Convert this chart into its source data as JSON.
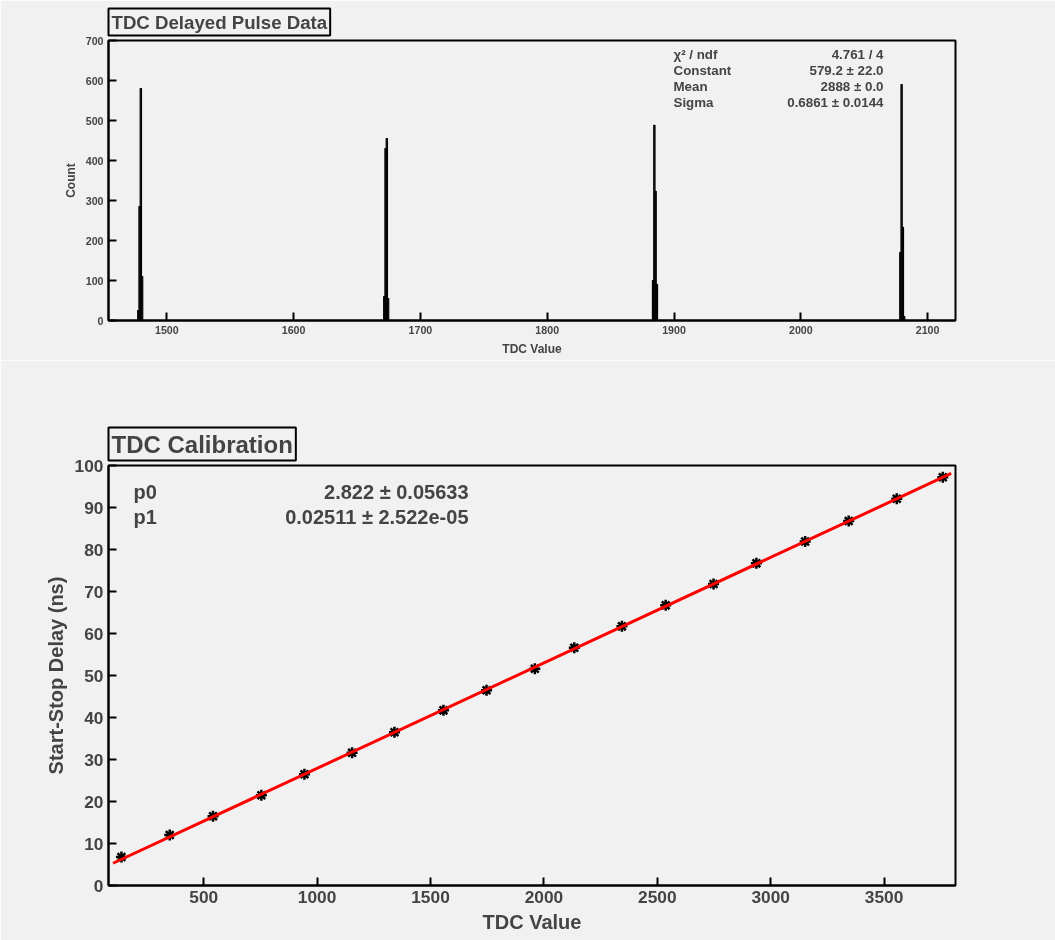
{
  "chart_data": [
    {
      "type": "histogram",
      "title": "TDC Delayed Pulse Data",
      "xlabel": "TDC Value",
      "ylabel": "Count",
      "bins": [
        1477,
        1478,
        1479,
        1480,
        1481,
        1671,
        1672,
        1673,
        1674,
        1675,
        1883,
        1884,
        1885,
        1886,
        1887,
        2078,
        2079,
        2080,
        2081,
        2082
      ],
      "values": [
        25,
        285,
        580,
        110,
        0,
        60,
        430,
        455,
        55,
        0,
        100,
        488,
        323,
        90,
        0,
        170,
        590,
        233,
        10
      ],
      "color": "#000000",
      "xlim": [
        1454,
        2122
      ],
      "xticks": [
        1500,
        1600,
        1700,
        1800,
        1900,
        2000,
        2100
      ],
      "ylim": [
        0,
        700
      ],
      "yticks": [
        0,
        100,
        200,
        300,
        400,
        500,
        600,
        700
      ],
      "annotations": [
        "χ² / ndf",
        "4.761 / 4",
        "Constant",
        "579.2 ± 22.0",
        "Mean",
        "2888 ± 0.0",
        "Sigma",
        "0.6861 ± 0.0144"
      ]
    },
    {
      "type": "scatter",
      "title": "TDC Calibration",
      "xlabel": "TDC Value",
      "ylabel": "Start-Stop Delay (ns)",
      "series": [
        {
          "color": "#000000",
          "marker": "cross",
          "x": [
            137,
            350,
            541,
            754,
            944,
            1154,
            1341,
            1557,
            1747,
            1960,
            2134,
            2344,
            2537,
            2748,
            2937,
            3152,
            3344,
            3556,
            3759
          ],
          "values": [
            6.8,
            12,
            16.5,
            21.5,
            26.5,
            31.6,
            36.5,
            41.7,
            46.5,
            51.6,
            56.6,
            61.7,
            66.7,
            71.8,
            76.7,
            81.9,
            86.8,
            92.1,
            97.2
          ]
        },
        {
          "type": "line",
          "color": "#ff0000",
          "x": [
            100,
            3796
          ],
          "values": [
            5.3,
            98.1
          ]
        }
      ],
      "xlim": [
        80,
        3815
      ],
      "xticks": [
        500,
        1000,
        1500,
        2000,
        2500,
        3000,
        3500
      ],
      "ylim": [
        0,
        100
      ],
      "yticks": [
        0,
        10,
        20,
        30,
        40,
        50,
        60,
        70,
        80,
        90,
        100
      ],
      "annotations": [
        "p0",
        "2.822 ± 0.05633",
        "p1",
        "0.02511 ± 2.522e-05"
      ]
    }
  ]
}
